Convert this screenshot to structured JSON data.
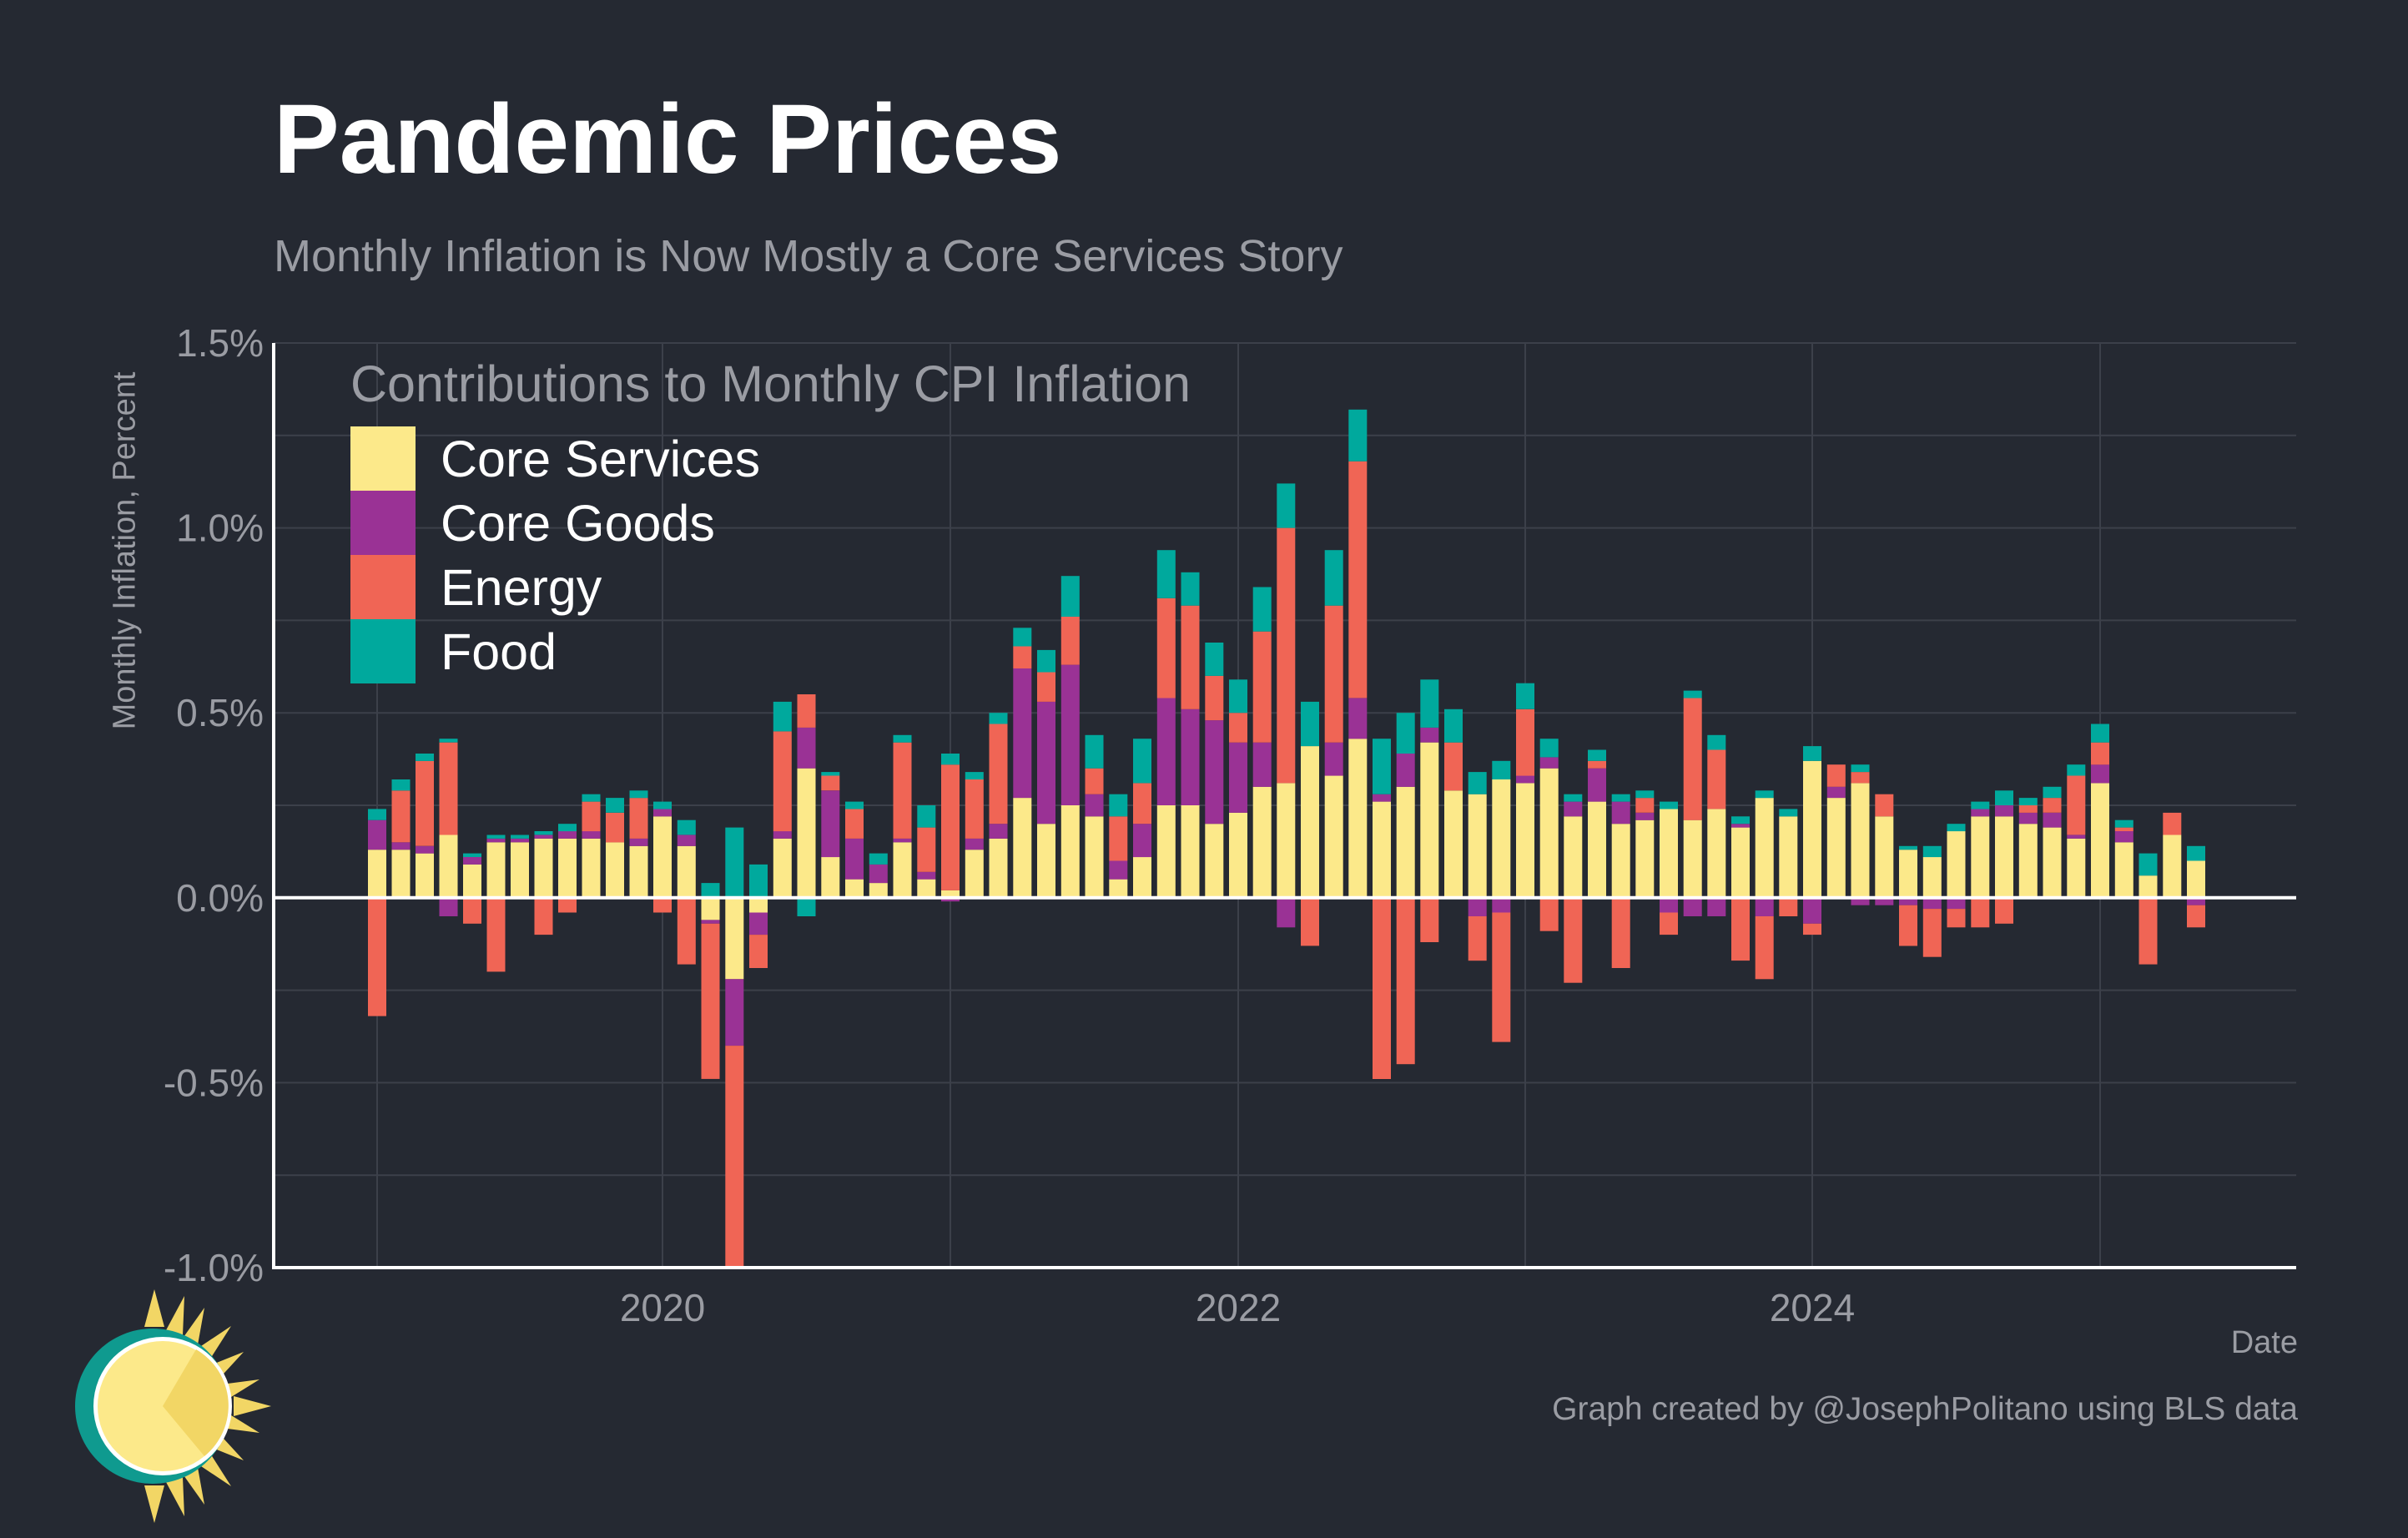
{
  "header": {
    "title": "Pandemic Prices",
    "subtitle": "Monthly Inflation is Now Mostly a Core Services Story"
  },
  "axes": {
    "y_label": "Monthly Inflation, Percent",
    "x_label": "Date"
  },
  "legend": {
    "title": "Contributions to Monthly CPI Inflation",
    "items": [
      {
        "label": "Core Services",
        "color": "#FCE98A"
      },
      {
        "label": "Core Goods",
        "color": "#9A3295"
      },
      {
        "label": "Energy",
        "color": "#F06555"
      },
      {
        "label": "Food",
        "color": "#00A99D"
      }
    ]
  },
  "footer": {
    "credit": "Graph created by @JosephPolitano using BLS data"
  },
  "logo": {
    "icon": "sun-logo-icon"
  },
  "colors": {
    "background": "#252932",
    "grid": "#3c404a",
    "axis": "#ffffff"
  },
  "chart_data": {
    "type": "bar",
    "stacked": true,
    "title": "Pandemic Prices",
    "subtitle": "Monthly Inflation is Now Mostly a Core Services Story",
    "xlabel": "Date",
    "ylabel": "Monthly Inflation, Percent",
    "ylim": [
      -1.0,
      1.5
    ],
    "yticks": [
      -1.0,
      -0.5,
      0.0,
      0.5,
      1.0,
      1.5
    ],
    "ytick_labels": [
      "-1.0%",
      "-0.5%",
      "0.0%",
      "0.5%",
      "1.0%",
      "1.5%"
    ],
    "xticks": [
      "2020",
      "2022",
      "2024"
    ],
    "grid": true,
    "legend_position": "top-left",
    "categories": [
      "2019-01",
      "2019-02",
      "2019-03",
      "2019-04",
      "2019-05",
      "2019-06",
      "2019-07",
      "2019-08",
      "2019-09",
      "2019-10",
      "2019-11",
      "2019-12",
      "2020-01",
      "2020-02",
      "2020-03",
      "2020-04",
      "2020-05",
      "2020-06",
      "2020-07",
      "2020-08",
      "2020-09",
      "2020-10",
      "2020-11",
      "2020-12",
      "2021-01",
      "2021-02",
      "2021-03",
      "2021-04",
      "2021-05",
      "2021-06",
      "2021-07",
      "2021-08",
      "2021-09",
      "2021-10",
      "2021-11",
      "2021-12",
      "2022-01",
      "2022-02",
      "2022-03",
      "2022-04",
      "2022-05",
      "2022-06",
      "2022-07",
      "2022-08",
      "2022-09",
      "2022-10",
      "2022-11",
      "2022-12",
      "2023-01",
      "2023-02",
      "2023-03",
      "2023-04",
      "2023-05",
      "2023-06",
      "2023-07",
      "2023-08",
      "2023-09",
      "2023-10",
      "2023-11",
      "2023-12",
      "2024-01",
      "2024-02",
      "2024-03",
      "2024-04",
      "2024-05",
      "2024-06",
      "2024-07",
      "2024-08",
      "2024-09",
      "2024-10",
      "2024-11",
      "2024-12",
      "2025-01",
      "2025-02",
      "2025-03",
      "2025-04",
      "2025-05"
    ],
    "series": [
      {
        "name": "Core Services",
        "color": "#FCE98A",
        "values": [
          0.13,
          0.13,
          0.12,
          0.17,
          0.09,
          0.15,
          0.15,
          0.16,
          0.16,
          0.16,
          0.15,
          0.14,
          0.22,
          0.14,
          -0.06,
          -0.22,
          -0.04,
          0.16,
          0.35,
          0.11,
          0.05,
          0.04,
          0.15,
          0.05,
          0.02,
          0.13,
          0.16,
          0.27,
          0.2,
          0.25,
          0.22,
          0.05,
          0.11,
          0.25,
          0.25,
          0.2,
          0.23,
          0.3,
          0.31,
          0.41,
          0.33,
          0.43,
          0.26,
          0.3,
          0.42,
          0.29,
          0.28,
          0.32,
          0.31,
          0.35,
          0.22,
          0.26,
          0.2,
          0.21,
          0.24,
          0.21,
          0.24,
          0.19,
          0.27,
          0.22,
          0.37,
          0.27,
          0.31,
          0.22,
          0.13,
          0.11,
          0.18,
          0.22,
          0.22,
          0.2,
          0.19,
          0.16,
          0.31,
          0.15,
          0.06,
          0.17,
          0.1
        ]
      },
      {
        "name": "Core Goods",
        "color": "#9A3295",
        "values": [
          0.08,
          0.02,
          0.02,
          -0.05,
          0.02,
          0.01,
          0.01,
          0.01,
          0.02,
          0.02,
          0.0,
          0.02,
          0.02,
          0.03,
          -0.01,
          -0.18,
          -0.06,
          0.02,
          0.11,
          0.18,
          0.11,
          0.05,
          0.01,
          0.02,
          -0.01,
          0.03,
          0.04,
          0.35,
          0.33,
          0.38,
          0.06,
          0.05,
          0.09,
          0.29,
          0.26,
          0.28,
          0.19,
          0.12,
          -0.08,
          0.0,
          0.09,
          0.11,
          0.02,
          0.09,
          0.04,
          0.0,
          -0.05,
          -0.04,
          0.02,
          0.03,
          0.04,
          0.09,
          0.06,
          0.02,
          -0.04,
          -0.05,
          -0.05,
          0.01,
          -0.05,
          0.0,
          -0.07,
          0.03,
          -0.02,
          -0.02,
          -0.02,
          -0.03,
          -0.03,
          0.02,
          0.03,
          0.03,
          0.04,
          0.01,
          0.05,
          0.03,
          0.0,
          0.0,
          -0.02
        ]
      },
      {
        "name": "Energy",
        "color": "#F06555",
        "values": [
          -0.32,
          0.14,
          0.23,
          0.25,
          -0.07,
          -0.2,
          0.0,
          -0.1,
          -0.04,
          0.08,
          0.08,
          0.11,
          -0.04,
          -0.18,
          -0.42,
          -0.6,
          -0.09,
          0.27,
          0.09,
          0.04,
          0.08,
          0.0,
          0.26,
          0.12,
          0.34,
          0.16,
          0.27,
          0.06,
          0.08,
          0.13,
          0.07,
          0.12,
          0.11,
          0.27,
          0.28,
          0.12,
          0.08,
          0.3,
          0.69,
          -0.13,
          0.37,
          0.64,
          -0.49,
          -0.45,
          -0.12,
          0.13,
          -0.12,
          -0.35,
          0.18,
          -0.09,
          -0.23,
          0.02,
          -0.19,
          0.04,
          -0.06,
          0.33,
          0.16,
          -0.17,
          -0.17,
          -0.05,
          -0.03,
          0.06,
          0.03,
          0.06,
          -0.11,
          -0.13,
          -0.05,
          -0.08,
          -0.07,
          0.02,
          0.04,
          0.16,
          0.06,
          0.01,
          -0.18,
          0.06,
          -0.06
        ]
      },
      {
        "name": "Food",
        "color": "#00A99D",
        "values": [
          0.03,
          0.03,
          0.02,
          0.01,
          0.01,
          0.01,
          0.01,
          0.01,
          0.02,
          0.02,
          0.04,
          0.02,
          0.02,
          0.04,
          0.04,
          0.19,
          0.09,
          0.08,
          -0.05,
          0.01,
          0.02,
          0.03,
          0.02,
          0.06,
          0.03,
          0.02,
          0.03,
          0.05,
          0.06,
          0.11,
          0.09,
          0.06,
          0.12,
          0.13,
          0.09,
          0.09,
          0.09,
          0.12,
          0.12,
          0.12,
          0.15,
          0.14,
          0.15,
          0.11,
          0.13,
          0.09,
          0.06,
          0.05,
          0.07,
          0.05,
          0.02,
          0.03,
          0.02,
          0.02,
          0.02,
          0.02,
          0.04,
          0.02,
          0.02,
          0.02,
          0.04,
          0.0,
          0.02,
          0.0,
          0.01,
          0.03,
          0.02,
          0.02,
          0.04,
          0.02,
          0.03,
          0.03,
          0.05,
          0.02,
          0.06,
          0.0,
          0.04
        ]
      }
    ]
  }
}
